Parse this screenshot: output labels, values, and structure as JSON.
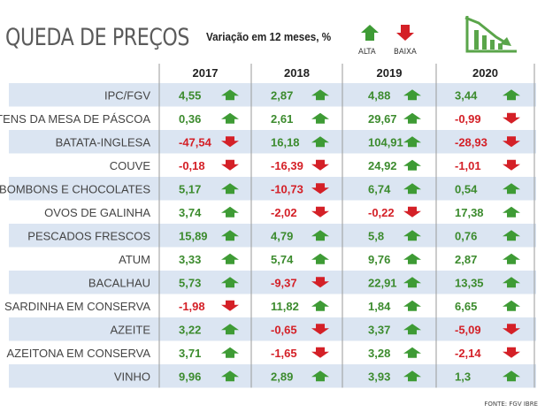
{
  "chart_data": {
    "type": "table",
    "title": "QUEDA DE PREÇOS",
    "subtitle": "Variação em 12 meses, %",
    "legend": {
      "up": "ALTA",
      "down": "BAIXA"
    },
    "source": "FONTE: FGV IBRE",
    "years": [
      "2017",
      "2018",
      "2019",
      "2020"
    ],
    "rows": [
      {
        "label": "IPC/FGV",
        "values": [
          "4,55",
          "2,87",
          "4,88",
          "3,44"
        ]
      },
      {
        "label": "ITENS DA MESA DE PÁSCOA",
        "values": [
          "0,36",
          "2,61",
          "29,67",
          "-0,99"
        ]
      },
      {
        "label": "BATATA-INGLESA",
        "values": [
          "-47,54",
          "16,18",
          "104,91",
          "-28,93"
        ]
      },
      {
        "label": "COUVE",
        "values": [
          "-0,18",
          "-16,39",
          "24,92",
          "-1,01"
        ]
      },
      {
        "label": "BOMBONS E CHOCOLATES",
        "values": [
          "5,17",
          "-10,73",
          "6,74",
          "0,54"
        ]
      },
      {
        "label": "OVOS DE GALINHA",
        "values": [
          "3,74",
          "-2,02",
          "-0,22",
          "17,38"
        ]
      },
      {
        "label": "PESCADOS FRESCOS",
        "values": [
          "15,89",
          "4,79",
          "5,8",
          "0,76"
        ]
      },
      {
        "label": "ATUM",
        "values": [
          "3,33",
          "5,74",
          "9,76",
          "2,87"
        ]
      },
      {
        "label": "BACALHAU",
        "values": [
          "5,73",
          "-9,37",
          "22,91",
          "13,35"
        ]
      },
      {
        "label": "SARDINHA EM CONSERVA",
        "values": [
          "-1,98",
          "11,82",
          "1,84",
          "6,65"
        ]
      },
      {
        "label": "AZEITE",
        "values": [
          "3,22",
          "-0,65",
          "3,37",
          "-5,09"
        ]
      },
      {
        "label": "AZEITONA EM CONSERVA",
        "values": [
          "3,71",
          "-1,65",
          "3,28",
          "-2,14"
        ]
      },
      {
        "label": "VINHO",
        "values": [
          "9,96",
          "2,89",
          "3,93",
          "1,3"
        ]
      }
    ]
  },
  "colors": {
    "up": "#3e9b35",
    "down": "#d42027",
    "stripe": "#dbe5f2",
    "value": "#3c8b2e",
    "label": "#444444"
  }
}
